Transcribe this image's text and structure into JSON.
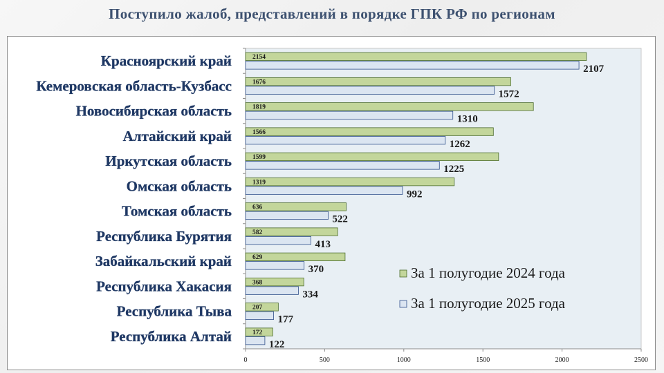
{
  "title": "Поступило жалоб, представлений в порядке ГПК РФ по регионам",
  "chart_data": {
    "type": "bar",
    "orientation": "horizontal",
    "categories": [
      "Красноярский край",
      "Кемеровская область-Кузбасс",
      "Новосибирская область",
      "Алтайский край",
      "Иркутская область",
      "Омская область",
      "Томская область",
      "Республика Бурятия",
      "Забайкальский край",
      "Республика Хакасия",
      "Республика Тыва",
      "Республика Алтай"
    ],
    "series": [
      {
        "name": "За 1 полугодие 2024 года",
        "color": "#c3d69b",
        "values": [
          2154,
          1676,
          1819,
          1566,
          1599,
          1319,
          636,
          582,
          629,
          368,
          207,
          172
        ]
      },
      {
        "name": "За 1 полугодие 2025 года",
        "color": "#dbe5f1",
        "values": [
          2107,
          1572,
          1310,
          1262,
          1225,
          992,
          522,
          413,
          370,
          334,
          177,
          122
        ]
      }
    ],
    "xlim": [
      0,
      2500
    ],
    "xticks": [
      0,
      500,
      1000,
      1500,
      2000,
      2500
    ],
    "plot_background": "#e8eff4",
    "category_label_color": "#1f3864",
    "legend_position": "bottom-right",
    "grid": false
  }
}
